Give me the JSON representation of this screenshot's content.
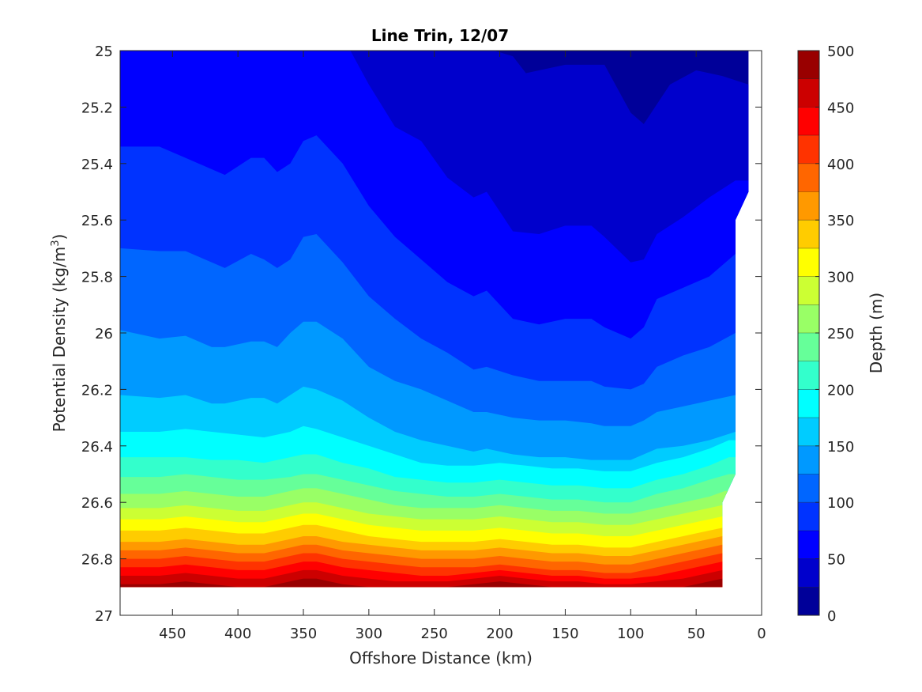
{
  "chart_data": {
    "type": "contourf",
    "title": "Line Trin, 12/07",
    "xlabel": "Offshore Distance (km)",
    "ylabel": "Potential Density (kg/m",
    "ylabel_sup": "3",
    "ylabel_close": ")",
    "x_reversed": true,
    "y_reversed": true,
    "xlim": [
      0,
      490
    ],
    "ylim": [
      25,
      27
    ],
    "xticks": [
      450,
      400,
      350,
      300,
      250,
      200,
      150,
      100,
      50,
      0
    ],
    "yticks": [
      25,
      25.2,
      25.4,
      25.6,
      25.8,
      26,
      26.2,
      26.4,
      26.6,
      26.8,
      27
    ],
    "ytick_labels": [
      "25",
      "25.2",
      "25.4",
      "25.6",
      "25.8",
      "26",
      "26.2",
      "26.4",
      "26.6",
      "26.8",
      "27"
    ],
    "colorbar": {
      "label": "Depth (m)",
      "range": [
        0,
        500
      ],
      "ticks": [
        0,
        50,
        100,
        150,
        200,
        250,
        300,
        350,
        400,
        450,
        500
      ],
      "level_step": 25,
      "colormap": "jet"
    },
    "data_extent": {
      "x_range_km": [
        10,
        490
      ],
      "deep_edge_x_km": 30,
      "density_bottom": 26.9
    },
    "contours": [
      {
        "level": 25,
        "x": [
          490,
          240,
          190,
          180,
          150,
          120,
          100,
          90,
          70,
          50,
          30,
          10
        ],
        "y": [
          24.95,
          24.95,
          25.02,
          25.08,
          25.05,
          25.05,
          25.22,
          25.26,
          25.12,
          25.07,
          25.09,
          25.12
        ]
      },
      {
        "level": 50,
        "x": [
          490,
          320,
          300,
          280,
          260,
          240,
          220,
          210,
          190,
          170,
          150,
          130,
          120,
          100,
          90,
          80,
          60,
          40,
          20
        ],
        "y": [
          24.95,
          24.95,
          25.12,
          25.27,
          25.32,
          25.45,
          25.52,
          25.5,
          25.64,
          25.65,
          25.62,
          25.62,
          25.66,
          25.75,
          25.74,
          25.65,
          25.59,
          25.52,
          25.46
        ]
      },
      {
        "level": 75,
        "x": [
          490,
          460,
          440,
          420,
          410,
          390,
          380,
          370,
          360,
          350,
          340,
          320,
          300,
          280,
          260,
          240,
          220,
          210,
          190,
          170,
          150,
          130,
          120,
          100,
          90,
          80,
          60,
          40,
          20
        ],
        "y": [
          25.34,
          25.34,
          25.38,
          25.42,
          25.44,
          25.38,
          25.38,
          25.43,
          25.4,
          25.32,
          25.3,
          25.4,
          25.55,
          25.66,
          25.74,
          25.82,
          25.87,
          25.85,
          25.95,
          25.97,
          25.95,
          25.95,
          25.98,
          26.02,
          25.98,
          25.88,
          25.84,
          25.8,
          25.72
        ]
      },
      {
        "level": 100,
        "x": [
          490,
          460,
          440,
          420,
          410,
          390,
          380,
          370,
          360,
          350,
          340,
          320,
          300,
          280,
          260,
          240,
          220,
          210,
          190,
          170,
          150,
          130,
          120,
          100,
          90,
          80,
          60,
          40,
          20
        ],
        "y": [
          25.7,
          25.71,
          25.71,
          25.75,
          25.77,
          25.72,
          25.74,
          25.77,
          25.74,
          25.66,
          25.65,
          25.75,
          25.87,
          25.95,
          26.02,
          26.07,
          26.13,
          26.12,
          26.15,
          26.17,
          26.17,
          26.17,
          26.19,
          26.2,
          26.18,
          26.12,
          26.08,
          26.05,
          26.0
        ]
      },
      {
        "level": 125,
        "x": [
          490,
          460,
          440,
          420,
          410,
          390,
          380,
          370,
          360,
          350,
          340,
          320,
          300,
          280,
          260,
          240,
          220,
          210,
          190,
          170,
          150,
          130,
          120,
          100,
          90,
          80,
          60,
          40,
          20
        ],
        "y": [
          25.99,
          26.02,
          26.01,
          26.05,
          26.05,
          26.03,
          26.03,
          26.05,
          26.0,
          25.96,
          25.96,
          26.02,
          26.12,
          26.17,
          26.2,
          26.24,
          26.28,
          26.28,
          26.3,
          26.31,
          26.31,
          26.32,
          26.33,
          26.33,
          26.31,
          26.28,
          26.26,
          26.24,
          26.22
        ]
      },
      {
        "level": 150,
        "x": [
          490,
          460,
          440,
          420,
          410,
          390,
          380,
          370,
          360,
          350,
          340,
          320,
          300,
          280,
          260,
          240,
          220,
          210,
          190,
          170,
          150,
          130,
          120,
          100,
          90,
          80,
          60,
          40,
          20
        ],
        "y": [
          26.22,
          26.23,
          26.22,
          26.25,
          26.25,
          26.23,
          26.23,
          26.25,
          26.22,
          26.19,
          26.2,
          26.24,
          26.3,
          26.35,
          26.38,
          26.4,
          26.42,
          26.41,
          26.43,
          26.44,
          26.44,
          26.45,
          26.45,
          26.45,
          26.43,
          26.41,
          26.4,
          26.38,
          26.35
        ]
      },
      {
        "level": 175,
        "x": [
          490,
          460,
          440,
          420,
          400,
          380,
          360,
          350,
          340,
          320,
          300,
          280,
          260,
          240,
          220,
          200,
          180,
          160,
          140,
          120,
          100,
          80,
          60,
          40,
          25
        ],
        "y": [
          26.35,
          26.35,
          26.34,
          26.35,
          26.36,
          26.37,
          26.35,
          26.33,
          26.34,
          26.37,
          26.4,
          26.43,
          26.46,
          26.47,
          26.47,
          26.46,
          26.47,
          26.48,
          26.48,
          26.49,
          26.49,
          26.46,
          26.44,
          26.41,
          26.38
        ]
      },
      {
        "level": 200,
        "x": [
          490,
          460,
          440,
          420,
          400,
          380,
          360,
          350,
          340,
          320,
          300,
          280,
          260,
          240,
          220,
          200,
          180,
          160,
          140,
          120,
          100,
          80,
          60,
          40,
          25
        ],
        "y": [
          26.44,
          26.44,
          26.44,
          26.45,
          26.45,
          26.46,
          26.44,
          26.43,
          26.43,
          26.46,
          26.48,
          26.51,
          26.52,
          26.53,
          26.53,
          26.52,
          26.53,
          26.54,
          26.54,
          26.55,
          26.55,
          26.52,
          26.5,
          26.47,
          26.44
        ]
      },
      {
        "level": 225,
        "x": [
          490,
          460,
          440,
          420,
          400,
          380,
          360,
          350,
          340,
          320,
          300,
          280,
          260,
          240,
          220,
          200,
          180,
          160,
          140,
          120,
          100,
          80,
          60,
          40,
          25
        ],
        "y": [
          26.51,
          26.51,
          26.5,
          26.51,
          26.52,
          26.52,
          26.51,
          26.5,
          26.5,
          26.52,
          26.54,
          26.56,
          26.57,
          26.58,
          26.58,
          26.57,
          26.58,
          26.59,
          26.59,
          26.6,
          26.6,
          26.57,
          26.55,
          26.52,
          26.5
        ]
      },
      {
        "level": 250,
        "x": [
          490,
          460,
          440,
          420,
          400,
          380,
          360,
          350,
          340,
          320,
          300,
          280,
          260,
          240,
          220,
          200,
          180,
          160,
          140,
          120,
          100,
          80,
          60,
          40,
          28
        ],
        "y": [
          26.57,
          26.57,
          26.56,
          26.57,
          26.58,
          26.58,
          26.56,
          26.55,
          26.55,
          26.57,
          26.59,
          26.61,
          26.62,
          26.62,
          26.62,
          26.61,
          26.62,
          26.63,
          26.63,
          26.64,
          26.64,
          26.62,
          26.6,
          26.58,
          26.56
        ]
      },
      {
        "level": 275,
        "x": [
          490,
          460,
          440,
          420,
          400,
          380,
          360,
          350,
          340,
          320,
          300,
          280,
          260,
          240,
          220,
          200,
          180,
          160,
          140,
          120,
          100,
          80,
          60,
          40,
          30
        ],
        "y": [
          26.62,
          26.62,
          26.61,
          26.62,
          26.63,
          26.63,
          26.61,
          26.6,
          26.6,
          26.62,
          26.64,
          26.65,
          26.66,
          26.66,
          26.66,
          26.65,
          26.66,
          26.67,
          26.67,
          26.68,
          26.68,
          26.66,
          26.64,
          26.62,
          26.61
        ]
      },
      {
        "level": 300,
        "x": [
          490,
          460,
          440,
          420,
          400,
          380,
          360,
          350,
          340,
          320,
          300,
          280,
          260,
          240,
          220,
          200,
          180,
          160,
          140,
          120,
          100,
          80,
          60,
          40,
          30
        ],
        "y": [
          26.66,
          26.66,
          26.65,
          26.66,
          26.67,
          26.67,
          26.65,
          26.64,
          26.64,
          26.66,
          26.68,
          26.69,
          26.7,
          26.7,
          26.7,
          26.69,
          26.7,
          26.71,
          26.71,
          26.72,
          26.72,
          26.7,
          26.68,
          26.66,
          26.65
        ]
      },
      {
        "level": 325,
        "x": [
          490,
          460,
          440,
          420,
          400,
          380,
          360,
          350,
          340,
          320,
          300,
          280,
          260,
          240,
          220,
          200,
          180,
          160,
          140,
          120,
          100,
          80,
          60,
          40,
          30
        ],
        "y": [
          26.7,
          26.7,
          26.69,
          26.7,
          26.71,
          26.71,
          26.69,
          26.68,
          26.68,
          26.7,
          26.72,
          26.73,
          26.74,
          26.74,
          26.74,
          26.73,
          26.74,
          26.75,
          26.75,
          26.76,
          26.76,
          26.74,
          26.72,
          26.7,
          26.69
        ]
      },
      {
        "level": 350,
        "x": [
          490,
          460,
          440,
          420,
          400,
          380,
          360,
          350,
          340,
          320,
          300,
          280,
          260,
          240,
          220,
          200,
          180,
          160,
          140,
          120,
          100,
          80,
          60,
          40,
          30
        ],
        "y": [
          26.74,
          26.74,
          26.73,
          26.74,
          26.75,
          26.75,
          26.73,
          26.72,
          26.72,
          26.74,
          26.75,
          26.76,
          26.77,
          26.77,
          26.77,
          26.76,
          26.77,
          26.78,
          26.78,
          26.79,
          26.79,
          26.77,
          26.75,
          26.73,
          26.72
        ]
      },
      {
        "level": 375,
        "x": [
          490,
          460,
          440,
          420,
          400,
          380,
          360,
          350,
          340,
          320,
          300,
          280,
          260,
          240,
          220,
          200,
          180,
          160,
          140,
          120,
          100,
          80,
          60,
          40,
          30
        ],
        "y": [
          26.77,
          26.77,
          26.76,
          26.77,
          26.78,
          26.78,
          26.76,
          26.75,
          26.75,
          26.77,
          26.78,
          26.79,
          26.8,
          26.8,
          26.8,
          26.79,
          26.8,
          26.81,
          26.81,
          26.82,
          26.82,
          26.8,
          26.78,
          26.76,
          26.75
        ]
      },
      {
        "level": 400,
        "x": [
          490,
          460,
          440,
          420,
          400,
          380,
          360,
          350,
          340,
          320,
          300,
          280,
          260,
          240,
          220,
          200,
          180,
          160,
          140,
          120,
          100,
          80,
          60,
          40,
          30
        ],
        "y": [
          26.8,
          26.8,
          26.79,
          26.8,
          26.81,
          26.81,
          26.79,
          26.78,
          26.78,
          26.8,
          26.81,
          26.82,
          26.83,
          26.83,
          26.83,
          26.82,
          26.83,
          26.84,
          26.84,
          26.85,
          26.85,
          26.83,
          26.81,
          26.79,
          26.78
        ]
      },
      {
        "level": 425,
        "x": [
          490,
          460,
          440,
          420,
          400,
          380,
          360,
          350,
          340,
          320,
          300,
          280,
          260,
          240,
          220,
          200,
          180,
          160,
          140,
          120,
          100,
          80,
          60,
          40,
          30
        ],
        "y": [
          26.83,
          26.83,
          26.82,
          26.83,
          26.84,
          26.84,
          26.82,
          26.81,
          26.81,
          26.83,
          26.84,
          26.85,
          26.86,
          26.86,
          26.85,
          26.84,
          26.85,
          26.86,
          26.86,
          26.87,
          26.87,
          26.86,
          26.84,
          26.82,
          26.81
        ]
      },
      {
        "level": 450,
        "x": [
          490,
          460,
          440,
          420,
          400,
          380,
          360,
          350,
          340,
          320,
          300,
          280,
          260,
          240,
          220,
          200,
          180,
          160,
          140,
          120,
          100,
          80,
          60,
          40,
          30
        ],
        "y": [
          26.86,
          26.86,
          26.85,
          26.86,
          26.87,
          26.87,
          26.85,
          26.84,
          26.84,
          26.86,
          26.87,
          26.88,
          26.88,
          26.88,
          26.87,
          26.86,
          26.87,
          26.88,
          26.88,
          26.89,
          26.89,
          26.88,
          26.87,
          26.85,
          26.84
        ]
      },
      {
        "level": 475,
        "x": [
          490,
          460,
          440,
          420,
          400,
          380,
          360,
          350,
          340,
          320,
          300,
          280,
          260,
          240,
          220,
          200,
          180,
          160,
          140,
          120,
          100,
          80,
          60,
          40,
          30
        ],
        "y": [
          26.89,
          26.89,
          26.88,
          26.89,
          26.9,
          26.9,
          26.88,
          26.87,
          26.87,
          26.89,
          26.9,
          26.9,
          26.9,
          26.9,
          26.89,
          26.88,
          26.89,
          26.9,
          26.9,
          26.9,
          26.9,
          26.9,
          26.9,
          26.88,
          26.87
        ]
      }
    ]
  }
}
